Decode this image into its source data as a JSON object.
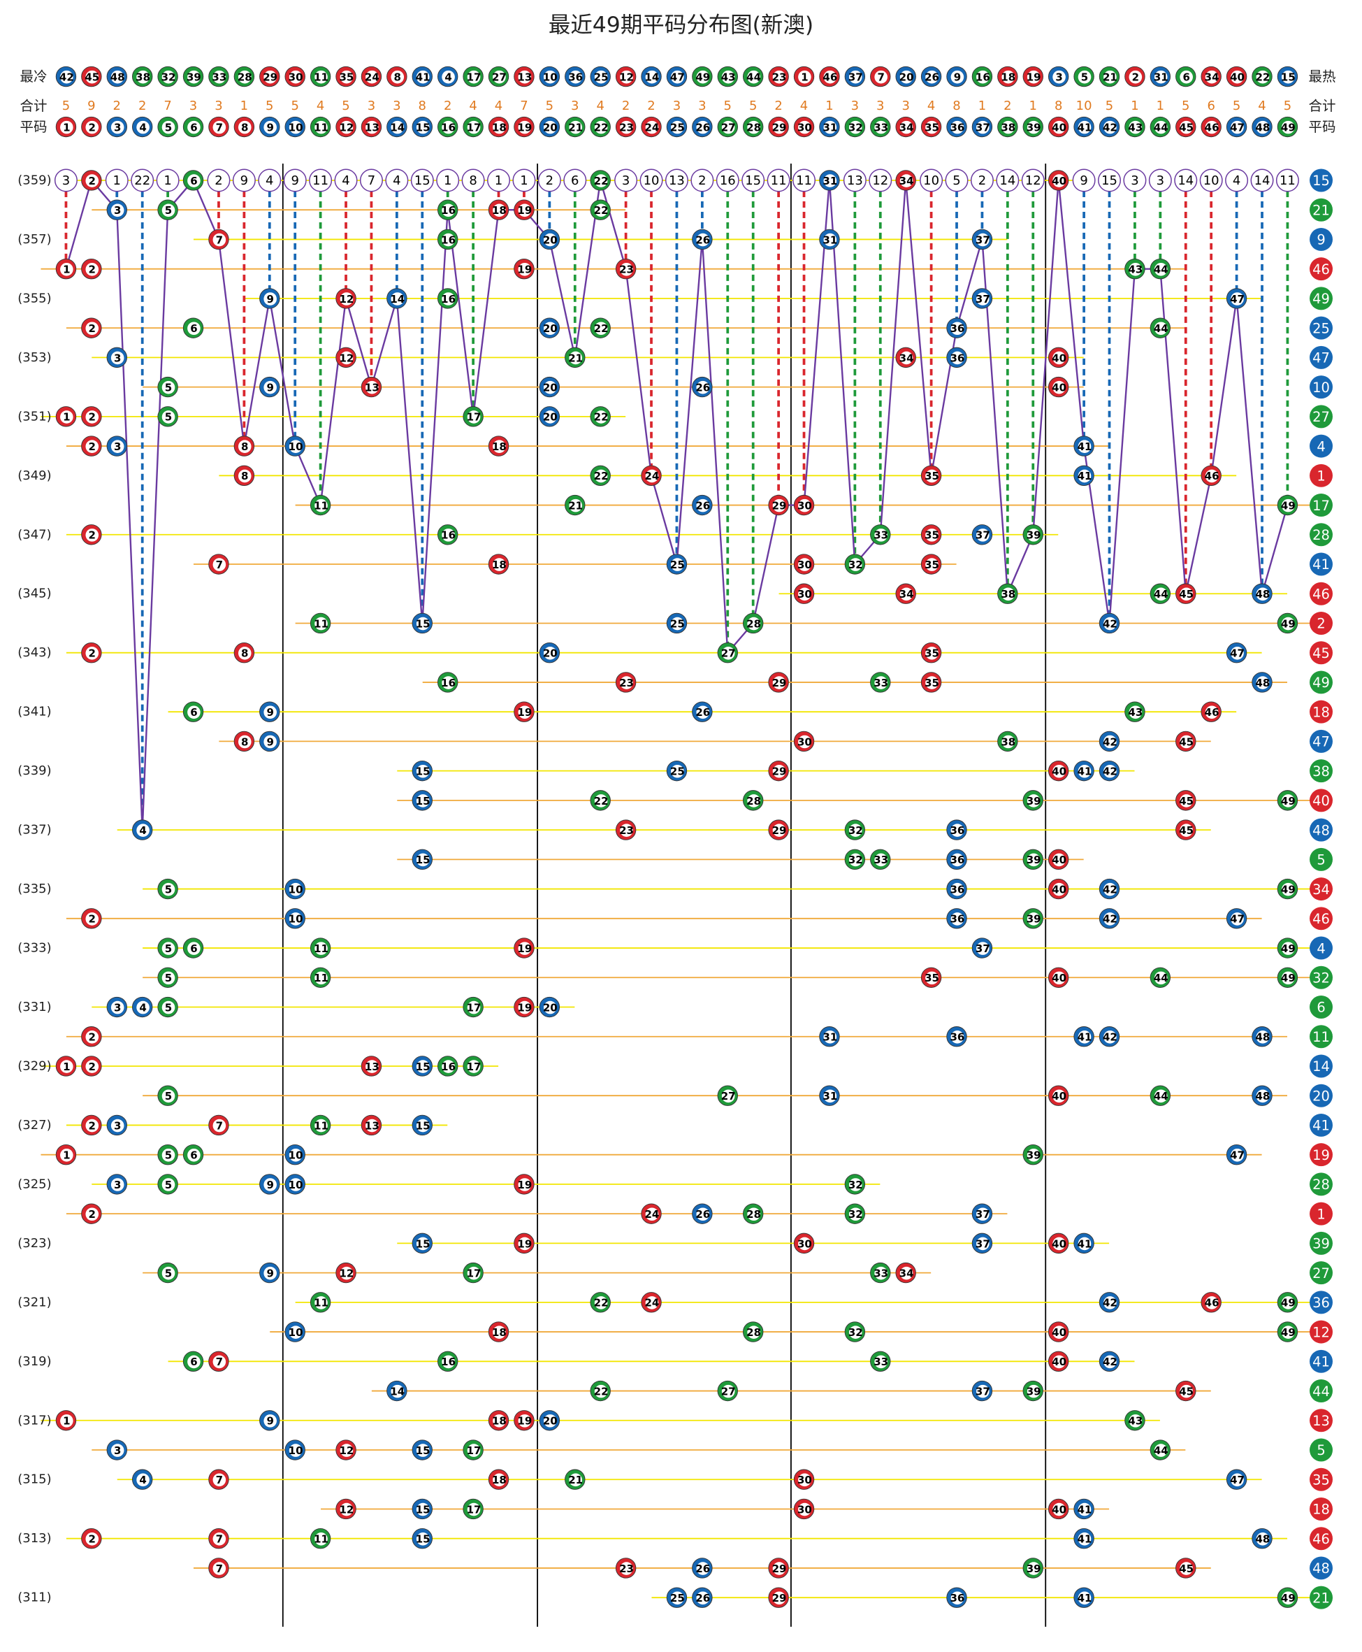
{
  "title": "最近49期平码分布图(新澳)",
  "header": {
    "cold_label": "最冷",
    "hot_label": "最热",
    "cold_to_hot": [
      42,
      45,
      48,
      38,
      32,
      39,
      33,
      28,
      29,
      30,
      11,
      35,
      24,
      8,
      41,
      4,
      17,
      27,
      13,
      10,
      36,
      25,
      12,
      14,
      47,
      49,
      43,
      44,
      23,
      1,
      46,
      37,
      7,
      20,
      26,
      9,
      16,
      18,
      19,
      3,
      5,
      21,
      2,
      31,
      6,
      34,
      40,
      22,
      15
    ],
    "total_label": "合计",
    "totals": [
      5,
      9,
      2,
      2,
      7,
      3,
      3,
      1,
      5,
      5,
      4,
      5,
      3,
      3,
      8,
      2,
      4,
      4,
      7,
      5,
      3,
      4,
      2,
      2,
      3,
      3,
      5,
      5,
      2,
      4,
      1,
      3,
      3,
      3,
      4,
      8,
      1,
      2,
      1,
      8,
      10,
      5,
      1,
      1,
      5,
      6,
      5,
      4,
      5
    ],
    "number_label": "平码",
    "numbers": [
      1,
      2,
      3,
      4,
      5,
      6,
      7,
      8,
      9,
      10,
      11,
      12,
      13,
      14,
      15,
      16,
      17,
      18,
      19,
      20,
      21,
      22,
      23,
      24,
      25,
      26,
      27,
      28,
      29,
      30,
      31,
      32,
      33,
      34,
      35,
      36,
      37,
      38,
      39,
      40,
      41,
      42,
      43,
      44,
      45,
      46,
      47,
      48,
      49
    ]
  },
  "latest_omissions": [
    3,
    2,
    1,
    22,
    1,
    6,
    2,
    9,
    4,
    9,
    11,
    4,
    7,
    4,
    15,
    1,
    8,
    1,
    1,
    2,
    6,
    22,
    3,
    10,
    13,
    2,
    16,
    15,
    11,
    11,
    31,
    13,
    12,
    34,
    10,
    5,
    2,
    14,
    12,
    40,
    9,
    15,
    3,
    3,
    14,
    10,
    4,
    14,
    11
  ],
  "color_groups": [
    {
      "color": "#d9262d",
      "numbers": [
        1,
        2,
        7,
        8,
        12,
        13,
        18,
        19,
        23,
        24,
        29,
        30,
        34,
        35,
        40,
        45,
        46
      ]
    },
    {
      "color": "#1768b5",
      "numbers": [
        3,
        4,
        9,
        10,
        14,
        15,
        20,
        25,
        26,
        31,
        36,
        37,
        41,
        42,
        47,
        48
      ]
    },
    {
      "color": "#1f9a3a",
      "numbers": [
        5,
        6,
        11,
        16,
        17,
        21,
        22,
        27,
        28,
        32,
        33,
        38,
        39,
        43,
        44,
        49
      ]
    }
  ],
  "rows": [
    {
      "period": "(359)",
      "balls": [
        2,
        6,
        22,
        31,
        34,
        40
      ],
      "special": 15
    },
    {
      "period": null,
      "balls": [
        3,
        5,
        16,
        18,
        19,
        22
      ],
      "special": 21
    },
    {
      "period": "(357)",
      "balls": [
        7,
        16,
        20,
        26,
        31,
        37
      ],
      "special": 9
    },
    {
      "period": null,
      "balls": [
        1,
        2,
        19,
        23,
        43,
        44
      ],
      "special": 46
    },
    {
      "period": "(355)",
      "balls": [
        9,
        12,
        14,
        16,
        37,
        47
      ],
      "special": 49
    },
    {
      "period": null,
      "balls": [
        2,
        6,
        20,
        22,
        36,
        44
      ],
      "special": 25
    },
    {
      "period": "(353)",
      "balls": [
        3,
        12,
        21,
        34,
        36,
        40
      ],
      "special": 47
    },
    {
      "period": null,
      "balls": [
        5,
        9,
        13,
        20,
        26,
        40
      ],
      "special": 10
    },
    {
      "period": "(351)",
      "balls": [
        1,
        2,
        5,
        17,
        20,
        22
      ],
      "special": 27
    },
    {
      "period": null,
      "balls": [
        2,
        3,
        8,
        10,
        18,
        41
      ],
      "special": 4
    },
    {
      "period": "(349)",
      "balls": [
        8,
        22,
        24,
        35,
        41,
        46
      ],
      "special": 1
    },
    {
      "period": null,
      "balls": [
        11,
        21,
        26,
        29,
        30,
        49
      ],
      "special": 17
    },
    {
      "period": "(347)",
      "balls": [
        2,
        16,
        33,
        35,
        37,
        39
      ],
      "special": 28
    },
    {
      "period": null,
      "balls": [
        7,
        18,
        25,
        30,
        32,
        35
      ],
      "special": 41
    },
    {
      "period": "(345)",
      "balls": [
        30,
        34,
        38,
        44,
        45,
        48
      ],
      "special": 46
    },
    {
      "period": null,
      "balls": [
        11,
        15,
        25,
        28,
        42,
        49
      ],
      "special": 2
    },
    {
      "period": "(343)",
      "balls": [
        2,
        8,
        20,
        27,
        35,
        47
      ],
      "special": 45
    },
    {
      "period": null,
      "balls": [
        16,
        23,
        29,
        33,
        35,
        48
      ],
      "special": 49
    },
    {
      "period": "(341)",
      "balls": [
        6,
        9,
        19,
        26,
        43,
        46
      ],
      "special": 18
    },
    {
      "period": null,
      "balls": [
        8,
        9,
        30,
        38,
        42,
        45
      ],
      "special": 47
    },
    {
      "period": "(339)",
      "balls": [
        15,
        25,
        29,
        40,
        41,
        42
      ],
      "special": 38
    },
    {
      "period": null,
      "balls": [
        15,
        22,
        28,
        39,
        45,
        49
      ],
      "special": 40
    },
    {
      "period": "(337)",
      "balls": [
        4,
        23,
        29,
        32,
        36,
        45
      ],
      "special": 48
    },
    {
      "period": null,
      "balls": [
        15,
        32,
        33,
        36,
        39,
        40
      ],
      "special": 5
    },
    {
      "period": "(335)",
      "balls": [
        5,
        10,
        36,
        40,
        42,
        49
      ],
      "special": 34
    },
    {
      "period": null,
      "balls": [
        2,
        10,
        36,
        39,
        42,
        47
      ],
      "special": 46
    },
    {
      "period": "(333)",
      "balls": [
        5,
        6,
        11,
        19,
        37,
        49
      ],
      "special": 4
    },
    {
      "period": null,
      "balls": [
        5,
        11,
        35,
        40,
        44,
        49
      ],
      "special": 32
    },
    {
      "period": "(331)",
      "balls": [
        3,
        4,
        5,
        17,
        19,
        20
      ],
      "special": 6
    },
    {
      "period": null,
      "balls": [
        2,
        31,
        36,
        41,
        42,
        48
      ],
      "special": 11
    },
    {
      "period": "(329)",
      "balls": [
        1,
        2,
        13,
        15,
        16,
        17
      ],
      "special": 14
    },
    {
      "period": null,
      "balls": [
        5,
        27,
        31,
        40,
        44,
        48
      ],
      "special": 20
    },
    {
      "period": "(327)",
      "balls": [
        2,
        3,
        7,
        11,
        13,
        15
      ],
      "special": 41
    },
    {
      "period": null,
      "balls": [
        1,
        5,
        6,
        10,
        39,
        47
      ],
      "special": 19
    },
    {
      "period": "(325)",
      "balls": [
        3,
        5,
        9,
        10,
        19,
        32
      ],
      "special": 28
    },
    {
      "period": null,
      "balls": [
        2,
        24,
        26,
        28,
        32,
        37
      ],
      "special": 1
    },
    {
      "period": "(323)",
      "balls": [
        15,
        19,
        30,
        37,
        40,
        41
      ],
      "special": 39
    },
    {
      "period": null,
      "balls": [
        5,
        9,
        12,
        17,
        33,
        34
      ],
      "special": 27
    },
    {
      "period": "(321)",
      "balls": [
        11,
        22,
        24,
        42,
        46,
        49
      ],
      "special": 36
    },
    {
      "period": null,
      "balls": [
        10,
        18,
        28,
        32,
        40,
        49
      ],
      "special": 12
    },
    {
      "period": "(319)",
      "balls": [
        6,
        7,
        16,
        33,
        40,
        42
      ],
      "special": 41
    },
    {
      "period": null,
      "balls": [
        14,
        22,
        27,
        37,
        39,
        45
      ],
      "special": 44
    },
    {
      "period": "(317)",
      "balls": [
        1,
        9,
        18,
        19,
        20,
        43
      ],
      "special": 13
    },
    {
      "period": null,
      "balls": [
        3,
        10,
        12,
        15,
        17,
        44
      ],
      "special": 5
    },
    {
      "period": "(315)",
      "balls": [
        4,
        7,
        18,
        21,
        30,
        47
      ],
      "special": 35
    },
    {
      "period": null,
      "balls": [
        12,
        15,
        17,
        30,
        40,
        41
      ],
      "special": 18
    },
    {
      "period": "(313)",
      "balls": [
        2,
        7,
        11,
        15,
        41,
        48
      ],
      "special": 46
    },
    {
      "period": null,
      "balls": [
        7,
        23,
        26,
        29,
        39,
        45
      ],
      "special": 48
    },
    {
      "period": "(311)",
      "balls": [
        25,
        26,
        29,
        36,
        41,
        49
      ],
      "special": 21
    }
  ]
}
